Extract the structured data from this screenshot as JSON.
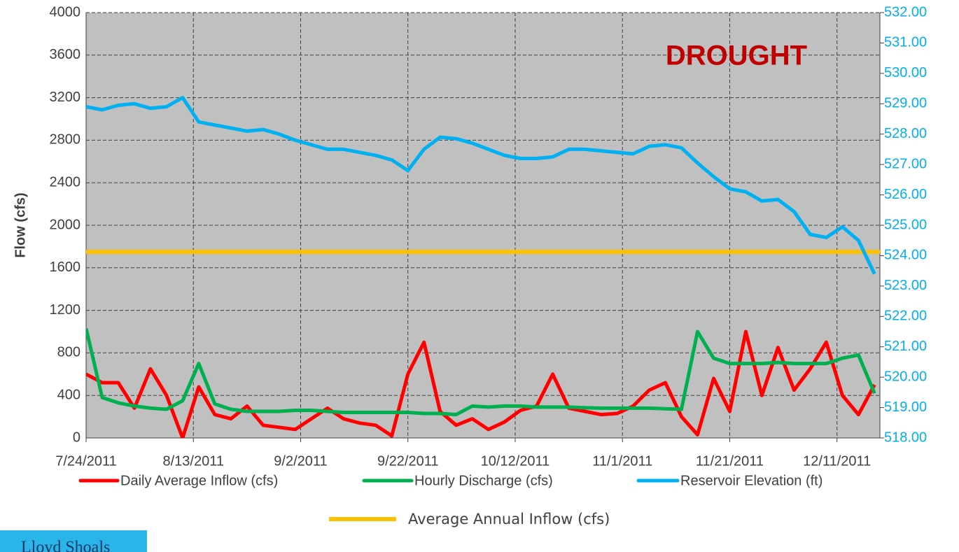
{
  "chart_data": {
    "type": "line",
    "y_label": "Flow (cfs)",
    "annotation": "DROUGHT",
    "annotation_color": "#c00000",
    "logo_text": "Lloyd Shoals",
    "background": "#c0c0c0",
    "grid": true,
    "x": [
      "2011-07-24",
      "2011-07-27",
      "2011-07-30",
      "2011-08-02",
      "2011-08-05",
      "2011-08-08",
      "2011-08-11",
      "2011-08-14",
      "2011-08-17",
      "2011-08-20",
      "2011-08-23",
      "2011-08-26",
      "2011-08-29",
      "2011-09-01",
      "2011-09-04",
      "2011-09-07",
      "2011-09-10",
      "2011-09-13",
      "2011-09-16",
      "2011-09-19",
      "2011-09-22",
      "2011-09-25",
      "2011-09-28",
      "2011-10-01",
      "2011-10-04",
      "2011-10-07",
      "2011-10-10",
      "2011-10-13",
      "2011-10-16",
      "2011-10-19",
      "2011-10-22",
      "2011-10-25",
      "2011-10-28",
      "2011-10-31",
      "2011-11-03",
      "2011-11-06",
      "2011-11-09",
      "2011-11-12",
      "2011-11-15",
      "2011-11-18",
      "2011-11-21",
      "2011-11-24",
      "2011-11-27",
      "2011-11-30",
      "2011-12-03",
      "2011-12-06",
      "2011-12-09",
      "2011-12-12",
      "2011-12-15",
      "2011-12-18"
    ],
    "xlim": [
      "2011-07-24",
      "2011-12-19"
    ],
    "xticks": [
      {
        "value": "2011-07-24",
        "label": "7/24/2011"
      },
      {
        "value": "2011-08-13",
        "label": "8/13/2011"
      },
      {
        "value": "2011-09-02",
        "label": "9/2/2011"
      },
      {
        "value": "2011-09-22",
        "label": "9/22/2011"
      },
      {
        "value": "2011-10-12",
        "label": "10/12/2011"
      },
      {
        "value": "2011-11-01",
        "label": "11/1/2011"
      },
      {
        "value": "2011-11-21",
        "label": "11/21/2011"
      },
      {
        "value": "2011-12-11",
        "label": "12/11/2011"
      }
    ],
    "ylim": [
      0,
      4000
    ],
    "yticks": [
      0,
      400,
      800,
      1200,
      1600,
      2000,
      2400,
      2800,
      3200,
      3600,
      4000
    ],
    "y2lim": [
      518,
      532
    ],
    "y2ticks": [
      {
        "value": 518,
        "label": "518.00"
      },
      {
        "value": 519,
        "label": "519.00"
      },
      {
        "value": 520,
        "label": "520.00"
      },
      {
        "value": 521,
        "label": "521.00"
      },
      {
        "value": 522,
        "label": "522.00"
      },
      {
        "value": 523,
        "label": "523.00"
      },
      {
        "value": 524,
        "label": "524.00"
      },
      {
        "value": 525,
        "label": "525.00"
      },
      {
        "value": 526,
        "label": "526.00"
      },
      {
        "value": 527,
        "label": "527.00"
      },
      {
        "value": 528,
        "label": "528.00"
      },
      {
        "value": 529,
        "label": "529.00"
      },
      {
        "value": 530,
        "label": "530.00"
      },
      {
        "value": 531,
        "label": "531.00"
      },
      {
        "value": 532,
        "label": "532.00"
      }
    ],
    "y2_color": "#00b0f0",
    "series": [
      {
        "name": "Daily Average Inflow (cfs)",
        "color": "#ff0000",
        "values": [
          600,
          520,
          520,
          280,
          650,
          400,
          0,
          480,
          220,
          180,
          300,
          120,
          100,
          80,
          180,
          280,
          180,
          140,
          120,
          20,
          600,
          900,
          250,
          120,
          180,
          80,
          150,
          260,
          300,
          600,
          280,
          250,
          220,
          230,
          300,
          450,
          520,
          200,
          30,
          560,
          250,
          1000,
          400,
          850,
          450,
          650,
          900,
          400,
          220,
          500
        ]
      },
      {
        "name": "Hourly Discharge (cfs)",
        "color": "#00b050",
        "values": [
          1030,
          380,
          330,
          300,
          280,
          270,
          350,
          700,
          320,
          270,
          250,
          250,
          250,
          260,
          260,
          250,
          240,
          240,
          240,
          240,
          240,
          230,
          230,
          220,
          300,
          290,
          300,
          300,
          290,
          290,
          290,
          285,
          280,
          280,
          280,
          280,
          275,
          270,
          1000,
          750,
          700,
          700,
          700,
          710,
          700,
          700,
          700,
          750,
          780,
          420
        ]
      },
      {
        "name": "Reservoir Elevation (ft)",
        "color": "#00b0f0",
        "axis": "y2",
        "values": [
          528.9,
          528.8,
          528.95,
          529.0,
          528.85,
          528.9,
          529.2,
          528.4,
          528.3,
          528.2,
          528.1,
          528.15,
          528.0,
          527.8,
          527.65,
          527.5,
          527.5,
          527.4,
          527.3,
          527.15,
          526.8,
          527.5,
          527.9,
          527.85,
          527.7,
          527.5,
          527.3,
          527.2,
          527.2,
          527.25,
          527.5,
          527.5,
          527.45,
          527.4,
          527.35,
          527.6,
          527.65,
          527.55,
          527.05,
          526.6,
          526.2,
          526.1,
          525.8,
          525.85,
          525.45,
          524.7,
          524.6,
          524.95,
          524.5,
          523.4
        ]
      }
    ],
    "reference_line": {
      "name": "Average Annual Inflow (cfs)",
      "value": 1750,
      "color": "#ffc000"
    }
  }
}
